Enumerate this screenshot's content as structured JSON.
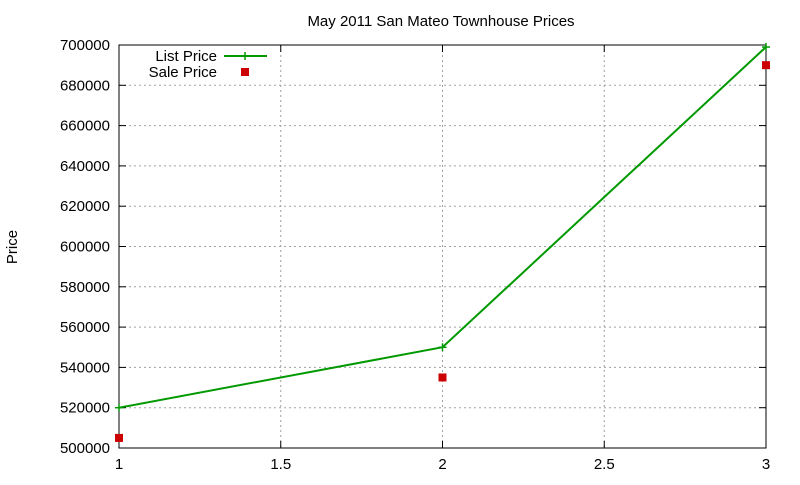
{
  "chart_data": {
    "type": "line",
    "title": "May 2011 San Mateo Townhouse Prices",
    "xlabel": "",
    "ylabel": "Price",
    "xlim": [
      1,
      3
    ],
    "ylim": [
      500000,
      700000
    ],
    "x_ticks": [
      1,
      1.5,
      2,
      2.5,
      3
    ],
    "y_ticks": [
      500000,
      520000,
      540000,
      560000,
      580000,
      600000,
      620000,
      640000,
      660000,
      680000,
      700000
    ],
    "grid": true,
    "legend_position": "top-left",
    "series": [
      {
        "name": "List Price",
        "style": "line-with-plus-markers",
        "color": "#009900",
        "x": [
          1,
          2,
          3
        ],
        "y": [
          520000,
          550000,
          699000
        ]
      },
      {
        "name": "Sale Price",
        "style": "square-markers",
        "color": "#cc0000",
        "x": [
          1,
          2,
          3
        ],
        "y": [
          505000,
          535000,
          690000
        ]
      }
    ]
  }
}
